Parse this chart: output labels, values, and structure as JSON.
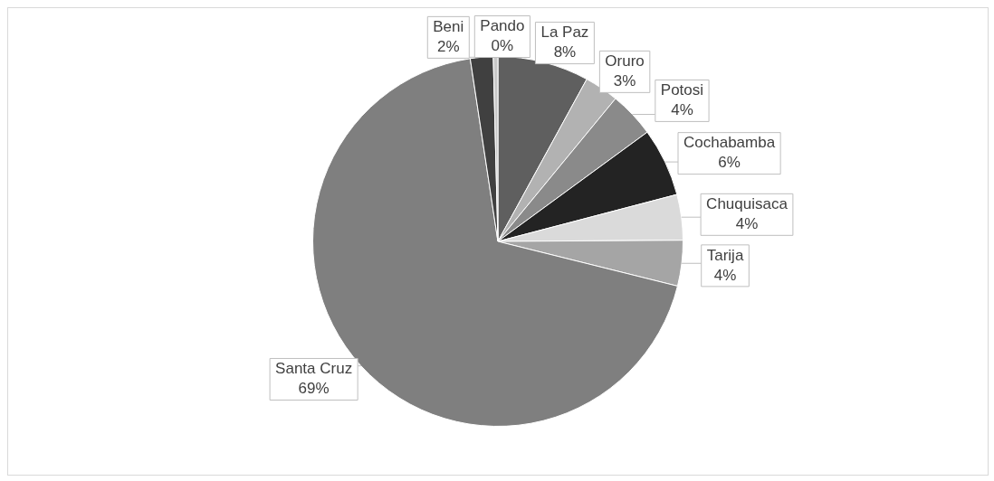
{
  "chart_data": {
    "type": "pie",
    "categories": [
      "La Paz",
      "Oruro",
      "Potosi",
      "Cochabamba",
      "Chuquisaca",
      "Tarija",
      "Santa Cruz",
      "Beni",
      "Pando"
    ],
    "values": [
      8,
      3,
      4,
      6,
      4,
      4,
      69,
      2,
      0.4
    ],
    "value_labels": [
      "8%",
      "3%",
      "4%",
      "6%",
      "4%",
      "4%",
      "69%",
      "2%",
      "0%"
    ],
    "colors": [
      "#5f5f5f",
      "#b2b2b2",
      "#8a8a8a",
      "#232323",
      "#dadada",
      "#a5a5a5",
      "#7f7f7f",
      "#404040",
      "#c8c8c8"
    ],
    "legend": false
  }
}
